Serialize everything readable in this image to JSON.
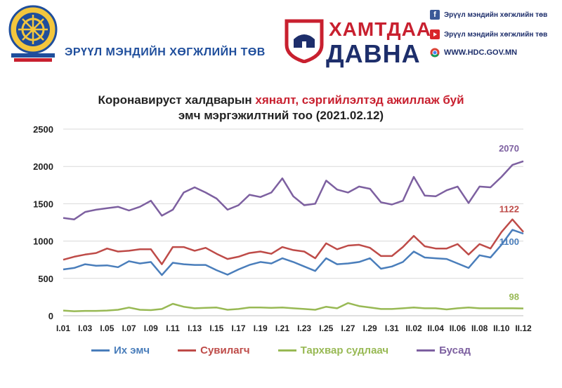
{
  "header": {
    "org_name": "ЭРҮҮЛ МЭНДИЙН ХӨГЖЛИЙН ТӨВ",
    "badge_top": "ХАМТДАА",
    "badge_bottom": "ДАВНА",
    "contacts": [
      {
        "icon": "facebook-icon",
        "text": "Эрүүл мэндийн хөгжлийн төв"
      },
      {
        "icon": "youtube-icon",
        "text": "Эрүүл мэндийн хөгжлийн төв"
      },
      {
        "icon": "chrome-icon",
        "text": "WWW.HDC.GOV.MN"
      }
    ]
  },
  "chart_data": {
    "type": "line",
    "title_part1": "Коронавируст халдварын ",
    "title_highlight": "хяналт, сэргийлэлтэд ажиллаж буй",
    "title_line2": "эмч мэргэжилтний тоо (2021.02.12)",
    "xlabel": "",
    "ylabel": "",
    "ylim": [
      0,
      2500
    ],
    "yticks": [
      0,
      500,
      1000,
      1500,
      2000,
      2500
    ],
    "grid": true,
    "legend_position": "bottom",
    "x": [
      "I.01",
      "I.02",
      "I.03",
      "I.04",
      "I.05",
      "I.06",
      "I.07",
      "I.08",
      "I.09",
      "I.10",
      "I.11",
      "I.12",
      "I.13",
      "I.14",
      "I.15",
      "I.16",
      "I.17",
      "I.18",
      "I.19",
      "I.20",
      "I.21",
      "I.22",
      "I.23",
      "I.24",
      "I.25",
      "I.26",
      "I.27",
      "I.28",
      "I.29",
      "I.30",
      "I.31",
      "II.01",
      "II.02",
      "II.03",
      "II.04",
      "II.05",
      "II.06",
      "II.07",
      "II.08",
      "II.09",
      "II.10",
      "II.11",
      "II.12"
    ],
    "xtick_labels": [
      "I.01",
      "I.03",
      "I.05",
      "I.07",
      "I.09",
      "I.11",
      "I.13",
      "I.15",
      "I.17",
      "I.19",
      "I.21",
      "I.23",
      "I.25",
      "I.27",
      "I.29",
      "I.31",
      "II.02",
      "II.04",
      "II.06",
      "II.08",
      "II.10",
      "II.12"
    ],
    "series": [
      {
        "name": "Их эмч",
        "color": "#4a7ebb",
        "end_label": "1100",
        "values": [
          620,
          640,
          690,
          670,
          675,
          650,
          730,
          700,
          720,
          545,
          710,
          690,
          680,
          680,
          610,
          550,
          620,
          680,
          720,
          700,
          770,
          720,
          660,
          600,
          770,
          690,
          700,
          720,
          770,
          630,
          660,
          720,
          860,
          780,
          770,
          760,
          700,
          640,
          810,
          780,
          950,
          1150,
          1100
        ]
      },
      {
        "name": "Сувилагч",
        "color": "#be4b48",
        "end_label": "1122",
        "values": [
          750,
          790,
          820,
          840,
          900,
          860,
          870,
          890,
          890,
          690,
          920,
          920,
          870,
          910,
          830,
          760,
          790,
          840,
          860,
          830,
          920,
          880,
          860,
          770,
          970,
          890,
          940,
          950,
          910,
          800,
          800,
          920,
          1070,
          930,
          900,
          900,
          960,
          820,
          960,
          900,
          1120,
          1290,
          1122
        ]
      },
      {
        "name": "Тархвар судлаач",
        "color": "#98b954",
        "end_label": "98",
        "values": [
          70,
          60,
          65,
          65,
          70,
          80,
          110,
          80,
          75,
          90,
          160,
          120,
          100,
          105,
          110,
          80,
          90,
          110,
          110,
          105,
          110,
          100,
          90,
          80,
          120,
          100,
          170,
          130,
          110,
          90,
          90,
          100,
          110,
          100,
          100,
          85,
          100,
          110,
          100,
          100,
          100,
          100,
          98
        ]
      },
      {
        "name": "Бусад",
        "color": "#7d60a0",
        "end_label": "2070",
        "values": [
          1310,
          1290,
          1390,
          1420,
          1440,
          1460,
          1410,
          1460,
          1540,
          1340,
          1420,
          1650,
          1720,
          1650,
          1570,
          1420,
          1480,
          1620,
          1590,
          1650,
          1840,
          1600,
          1480,
          1500,
          1810,
          1690,
          1650,
          1730,
          1700,
          1520,
          1490,
          1540,
          1860,
          1610,
          1600,
          1680,
          1730,
          1510,
          1730,
          1720,
          1860,
          2020,
          2070
        ]
      }
    ]
  }
}
